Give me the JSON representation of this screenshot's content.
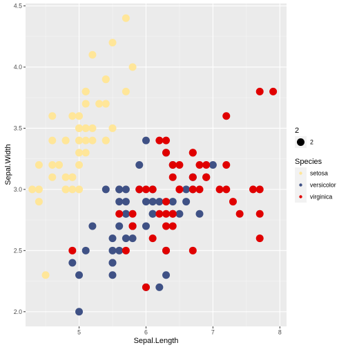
{
  "chart_data": {
    "type": "scatter",
    "xlabel": "Sepal.Length",
    "ylabel": "Sepal.Width",
    "xlim": [
      4.2,
      8.1
    ],
    "ylim": [
      1.88,
      4.52
    ],
    "x_ticks": [
      5,
      6,
      7,
      8
    ],
    "y_ticks": [
      2.0,
      2.5,
      3.0,
      3.5,
      4.0,
      4.5
    ],
    "x_tick_labels": [
      "5",
      "6",
      "7",
      "8"
    ],
    "y_tick_labels": [
      "2.0",
      "2.5",
      "3.0",
      "3.5",
      "4.0",
      "4.5"
    ],
    "grid": true,
    "legend_position": "right",
    "size_legend": {
      "title": "2",
      "label": "2"
    },
    "color_legend": {
      "title": "Species"
    },
    "series": [
      {
        "name": "setosa",
        "color": "#FFE699",
        "points": [
          [
            5.1,
            3.5
          ],
          [
            4.9,
            3.0
          ],
          [
            4.7,
            3.2
          ],
          [
            4.6,
            3.1
          ],
          [
            5.0,
            3.6
          ],
          [
            5.4,
            3.9
          ],
          [
            4.6,
            3.4
          ],
          [
            5.0,
            3.4
          ],
          [
            4.4,
            2.9
          ],
          [
            4.9,
            3.1
          ],
          [
            5.4,
            3.7
          ],
          [
            4.8,
            3.4
          ],
          [
            4.8,
            3.0
          ],
          [
            4.3,
            3.0
          ],
          [
            5.8,
            4.0
          ],
          [
            5.7,
            4.4
          ],
          [
            5.4,
            3.9
          ],
          [
            5.1,
            3.5
          ],
          [
            5.7,
            3.8
          ],
          [
            5.1,
            3.8
          ],
          [
            5.4,
            3.4
          ],
          [
            5.1,
            3.7
          ],
          [
            4.6,
            3.6
          ],
          [
            5.1,
            3.3
          ],
          [
            4.8,
            3.4
          ],
          [
            5.0,
            3.0
          ],
          [
            5.0,
            3.4
          ],
          [
            5.2,
            3.5
          ],
          [
            5.2,
            3.4
          ],
          [
            4.7,
            3.2
          ],
          [
            4.8,
            3.1
          ],
          [
            5.4,
            3.4
          ],
          [
            5.2,
            4.1
          ],
          [
            5.5,
            4.2
          ],
          [
            4.9,
            3.1
          ],
          [
            5.0,
            3.2
          ],
          [
            5.5,
            3.5
          ],
          [
            4.9,
            3.6
          ],
          [
            4.4,
            3.0
          ],
          [
            5.1,
            3.4
          ],
          [
            5.0,
            3.5
          ],
          [
            4.5,
            2.3
          ],
          [
            4.4,
            3.2
          ],
          [
            5.0,
            3.5
          ],
          [
            5.1,
            3.8
          ],
          [
            4.8,
            3.0
          ],
          [
            5.1,
            3.8
          ],
          [
            4.6,
            3.2
          ],
          [
            5.3,
            3.7
          ],
          [
            5.0,
            3.3
          ]
        ]
      },
      {
        "name": "versicolor",
        "color": "#3F5185",
        "points": [
          [
            7.0,
            3.2
          ],
          [
            6.4,
            3.2
          ],
          [
            6.9,
            3.1
          ],
          [
            5.5,
            2.3
          ],
          [
            6.5,
            2.8
          ],
          [
            5.7,
            2.8
          ],
          [
            6.3,
            3.3
          ],
          [
            4.9,
            2.4
          ],
          [
            6.6,
            2.9
          ],
          [
            5.2,
            2.7
          ],
          [
            5.0,
            2.0
          ],
          [
            5.9,
            3.0
          ],
          [
            6.0,
            2.2
          ],
          [
            6.1,
            2.9
          ],
          [
            5.6,
            2.9
          ],
          [
            6.7,
            3.1
          ],
          [
            5.6,
            3.0
          ],
          [
            5.8,
            2.7
          ],
          [
            6.2,
            2.2
          ],
          [
            5.6,
            2.5
          ],
          [
            5.9,
            3.2
          ],
          [
            6.1,
            2.8
          ],
          [
            6.3,
            2.5
          ],
          [
            6.1,
            2.8
          ],
          [
            6.4,
            2.9
          ],
          [
            6.6,
            3.0
          ],
          [
            6.8,
            2.8
          ],
          [
            6.7,
            3.0
          ],
          [
            6.0,
            2.9
          ],
          [
            5.7,
            2.6
          ],
          [
            5.5,
            2.4
          ],
          [
            5.5,
            2.4
          ],
          [
            5.8,
            2.7
          ],
          [
            6.0,
            2.7
          ],
          [
            5.4,
            3.0
          ],
          [
            6.0,
            3.4
          ],
          [
            6.7,
            3.1
          ],
          [
            6.3,
            2.3
          ],
          [
            5.6,
            3.0
          ],
          [
            5.5,
            2.5
          ],
          [
            5.5,
            2.6
          ],
          [
            6.1,
            3.0
          ],
          [
            5.8,
            2.6
          ],
          [
            5.0,
            2.3
          ],
          [
            5.6,
            2.7
          ],
          [
            5.7,
            3.0
          ],
          [
            5.7,
            2.9
          ],
          [
            6.2,
            2.9
          ],
          [
            5.1,
            2.5
          ],
          [
            5.7,
            2.8
          ]
        ]
      },
      {
        "name": "virginica",
        "color": "#E00000",
        "points": [
          [
            6.3,
            3.3
          ],
          [
            5.8,
            2.7
          ],
          [
            7.1,
            3.0
          ],
          [
            6.3,
            2.9
          ],
          [
            6.5,
            3.0
          ],
          [
            7.6,
            3.0
          ],
          [
            4.9,
            2.5
          ],
          [
            7.3,
            2.9
          ],
          [
            6.7,
            2.5
          ],
          [
            7.2,
            3.6
          ],
          [
            6.5,
            3.2
          ],
          [
            6.4,
            2.7
          ],
          [
            6.8,
            3.0
          ],
          [
            5.7,
            2.5
          ],
          [
            5.8,
            2.8
          ],
          [
            6.4,
            3.2
          ],
          [
            6.5,
            3.0
          ],
          [
            7.7,
            3.8
          ],
          [
            7.7,
            2.6
          ],
          [
            6.0,
            2.2
          ],
          [
            6.9,
            3.2
          ],
          [
            5.6,
            2.8
          ],
          [
            7.7,
            2.8
          ],
          [
            6.3,
            2.7
          ],
          [
            6.7,
            3.3
          ],
          [
            7.2,
            3.2
          ],
          [
            6.2,
            2.8
          ],
          [
            6.1,
            3.0
          ],
          [
            6.4,
            2.8
          ],
          [
            7.2,
            3.0
          ],
          [
            7.4,
            2.8
          ],
          [
            7.9,
            3.8
          ],
          [
            6.4,
            2.8
          ],
          [
            6.3,
            2.8
          ],
          [
            6.1,
            2.6
          ],
          [
            7.7,
            3.0
          ],
          [
            6.3,
            3.4
          ],
          [
            6.4,
            3.1
          ],
          [
            6.0,
            3.0
          ],
          [
            6.9,
            3.1
          ],
          [
            6.7,
            3.1
          ],
          [
            6.9,
            3.1
          ],
          [
            5.8,
            2.7
          ],
          [
            6.8,
            3.2
          ],
          [
            6.7,
            3.3
          ],
          [
            6.7,
            3.0
          ],
          [
            6.3,
            2.5
          ],
          [
            6.5,
            3.0
          ],
          [
            6.2,
            3.4
          ],
          [
            5.9,
            3.0
          ]
        ]
      }
    ]
  }
}
